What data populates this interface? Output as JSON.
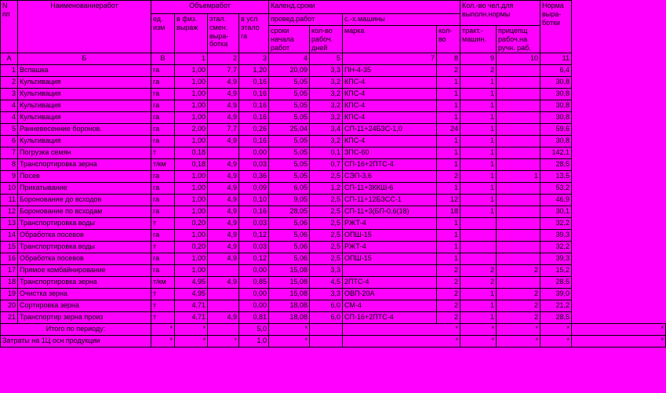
{
  "header": {
    "col_npp": "N пп",
    "col_name": "Наименованиеработ",
    "grp_obem": "Объемработ",
    "col_ed": "ед. изм",
    "col_fiz": "в физ. выраж",
    "col_etal": "этал. смен. выра- ботка",
    "col_usl": "в усл этало га",
    "grp_kalend": "Календ.сроки",
    "grp_proved": "провед.работ",
    "grp_mash": "с.-х.машины",
    "col_sroki": "сроки начала работ",
    "col_rab": "кол-во рабоч. дней",
    "col_marka": "марка",
    "col_kolvo": "кол- во",
    "grp_chel": "Кол.-во чел.для выполн.нормы",
    "col_trakt": "тракт.- машин.",
    "col_prits": "прицепщ рабоч.на ручн. раб.",
    "col_norma": "Норма выра- ботки",
    "letters": [
      "А",
      "Б",
      "В",
      "1",
      "2",
      "3",
      "4",
      "5",
      "7",
      "8",
      "9",
      "10",
      "11"
    ]
  },
  "rows": [
    {
      "n": "1",
      "name": "Вспашка",
      "ed": "га",
      "fiz": "1,00",
      "etal": "7,7",
      "usl": "1,20",
      "sroki": "20,09",
      "rab": "3,3",
      "marka": "ПН-4-35",
      "kolvo": "2",
      "trakt": "2",
      "prits": "",
      "norma": "6,4"
    },
    {
      "n": "2",
      "name": "Культивация",
      "ed": "га",
      "fiz": "1,00",
      "etal": "4,9",
      "usl": "0,16",
      "sroki": "5,05",
      "rab": "3,2",
      "marka": "КПС-4",
      "kolvo": "1",
      "trakt": "1",
      "prits": "",
      "norma": "30,8"
    },
    {
      "n": "3",
      "name": "Культивация",
      "ed": "га",
      "fiz": "1,00",
      "etal": "4,9",
      "usl": "0,16",
      "sroki": "5,05",
      "rab": "3,2",
      "marka": "КПС-4",
      "kolvo": "1",
      "trakt": "1",
      "prits": "",
      "norma": "30,8"
    },
    {
      "n": "4",
      "name": "Культивация",
      "ed": "га",
      "fiz": "1,00",
      "etal": "4,9",
      "usl": "0,16",
      "sroki": "5,05",
      "rab": "3,2",
      "marka": "КПС-4",
      "kolvo": "1",
      "trakt": "1",
      "prits": "",
      "norma": "30,8"
    },
    {
      "n": "4",
      "name": "Культивация",
      "ed": "га",
      "fiz": "1,00",
      "etal": "4,9",
      "usl": "0,16",
      "sroki": "5,05",
      "rab": "3,2",
      "marka": "КПС-4",
      "kolvo": "1",
      "trakt": "1",
      "prits": "",
      "norma": "30,8"
    },
    {
      "n": "5",
      "name": "Ранневесенние боронов.",
      "ed": "га",
      "fiz": "2,00",
      "etal": "7,7",
      "usl": "0,26",
      "sroki": "25,04",
      "rab": "3,4",
      "marka": "СП-11+24БЗС-1,0",
      "kolvo": "24",
      "trakt": "1",
      "prits": "",
      "norma": "59,6"
    },
    {
      "n": "6",
      "name": "Культивация",
      "ed": "га",
      "fiz": "1,00",
      "etal": "4,9",
      "usl": "0,16",
      "sroki": "5,05",
      "rab": "3,2",
      "marka": "КПС-4",
      "kolvo": "1",
      "trakt": "1",
      "prits": "",
      "norma": "30,8"
    },
    {
      "n": "7",
      "name": "Погрузка семян",
      "ed": "т",
      "fiz": "0,18",
      "etal": "",
      "usl": "0,00",
      "sroki": "5,05",
      "rab": "0,1",
      "marka": "ЗПС-60",
      "kolvo": "1",
      "trakt": "1",
      "prits": "",
      "norma": "142,1"
    },
    {
      "n": "8",
      "name": "Транспортировка зерна",
      "ed": "т/км",
      "fiz": "0,18",
      "etal": "4,9",
      "usl": "0,03",
      "sroki": "5,05",
      "rab": "0,7",
      "marka": "СП-16+2ПТС-4",
      "kolvo": "1",
      "trakt": "1",
      "prits": "",
      "norma": "28,5"
    },
    {
      "n": "9",
      "name": "Посев",
      "ed": "га",
      "fiz": "1,00",
      "etal": "4,9",
      "usl": "0,36",
      "sroki": "5,05",
      "rab": "2,5",
      "marka": "СЭП-3,6",
      "kolvo": "2",
      "trakt": "1",
      "prits": "1",
      "norma": "13,5"
    },
    {
      "n": "10",
      "name": "Прикатывание",
      "ed": "га",
      "fiz": "1,00",
      "etal": "4,9",
      "usl": "0,09",
      "sroki": "6,05",
      "rab": "1,2",
      "marka": "СП-11+3ККШ-6",
      "kolvo": "1",
      "trakt": "1",
      "prits": "",
      "norma": "53,2"
    },
    {
      "n": "11",
      "name": "Боронование до всходов",
      "ed": "га",
      "fiz": "1,00",
      "etal": "4,9",
      "usl": "0,10",
      "sroki": "9,05",
      "rab": "2,5",
      "marka": "СП-11+12БЗСС-1",
      "kolvo": "12",
      "trakt": "1",
      "prits": "",
      "norma": "46,9"
    },
    {
      "n": "12",
      "name": "Боронование по всходам",
      "ed": "га",
      "fiz": "1,00",
      "etal": "4,9",
      "usl": "0,16",
      "sroki": "28,05",
      "rab": "2,5",
      "marka": "СП-11+3(БП-0,6(18)",
      "kolvo": "18",
      "trakt": "1",
      "prits": "",
      "norma": "30,1"
    },
    {
      "n": "13",
      "name": "Транспортировка воды",
      "ed": "т",
      "fiz": "0,20",
      "etal": "4,9",
      "usl": "0,03",
      "sroki": "5,06",
      "rab": "2,5",
      "marka": "РЖТ-4",
      "kolvo": "1",
      "trakt": "",
      "prits": "",
      "norma": "32,2"
    },
    {
      "n": "14",
      "name": "Обработка посевов",
      "ed": "га",
      "fiz": "1,00",
      "etal": "4,9",
      "usl": "0,12",
      "sroki": "5,06",
      "rab": "2,5",
      "marka": "ОПШ-15",
      "kolvo": "1",
      "trakt": "",
      "prits": "",
      "norma": "39,3"
    },
    {
      "n": "15",
      "name": "Транспортировка воды",
      "ed": "т",
      "fiz": "0,20",
      "etal": "4,9",
      "usl": "0,03",
      "sroki": "5,06",
      "rab": "2,5",
      "marka": "РЖТ-4",
      "kolvo": "1",
      "trakt": "",
      "prits": "",
      "norma": "32,2"
    },
    {
      "n": "16",
      "name": "Обработка посевов",
      "ed": "га",
      "fiz": "1,00",
      "etal": "4,9",
      "usl": "0,12",
      "sroki": "5,06",
      "rab": "2,5",
      "marka": "ОПШ-15",
      "kolvo": "1",
      "trakt": "",
      "prits": "",
      "norma": "39,3"
    },
    {
      "n": "17",
      "name": "Прямое комбайнирование",
      "ed": "га",
      "fiz": "1,00",
      "etal": "",
      "usl": "0,00",
      "sroki": "15,08",
      "rab": "3,3",
      "marka": "",
      "kolvo": "2",
      "trakt": "2",
      "prits": "2",
      "norma": "15,2"
    },
    {
      "n": "18",
      "name": "Транспортировка зерна",
      "ed": "т/км",
      "fiz": "4,95",
      "etal": "4,9",
      "usl": "0,85",
      "sroki": "15,08",
      "rab": "4,5",
      "marka": "2ПТС-4",
      "kolvo": "2",
      "trakt": "2",
      "prits": "",
      "norma": "28,5"
    },
    {
      "n": "19",
      "name": "Очистка зерна",
      "ed": "т",
      "fiz": "4,95",
      "etal": "",
      "usl": "0,00",
      "sroki": "15,08",
      "rab": "3,3",
      "marka": "ОВП-20А",
      "kolvo": "2",
      "trakt": "1",
      "prits": "2",
      "norma": "39,0"
    },
    {
      "n": "20",
      "name": "Сортировка зерна",
      "ed": "т",
      "fiz": "4,71",
      "etal": "",
      "usl": "0,00",
      "sroki": "18,08",
      "rab": "6,0",
      "marka": "СМ-4",
      "kolvo": "2",
      "trakt": "1",
      "prits": "2",
      "norma": "21,2"
    },
    {
      "n": "21",
      "name": "Транспортир зерна произ",
      "ed": "т",
      "fiz": "4,71",
      "etal": "4,9",
      "usl": "0,81",
      "sroki": "18,08",
      "rab": "6,0",
      "marka": "СП-16+2ПТС-4",
      "kolvo": "2",
      "trakt": "1",
      "prits": "2",
      "norma": "28,5"
    }
  ],
  "footer1": {
    "label": "Итого по периоду:",
    "v3": "*",
    "v4": "*",
    "v5": "",
    "v6": "5,0",
    "v7": "*",
    "v8": "",
    "v9": "*",
    "v10": "",
    "v11": "*",
    "v12": "*",
    "v13": "*",
    "v14": "*"
  },
  "footer2": {
    "label": "Затраты на 1Ц осн продукции",
    "v3": "*",
    "v4": "*",
    "v5": "*",
    "v6": "1,0",
    "v7": "*",
    "v8": "",
    "v9": "*",
    "v10": "",
    "v11": "*",
    "v12": "*",
    "v13": "*",
    "v14": "*"
  }
}
